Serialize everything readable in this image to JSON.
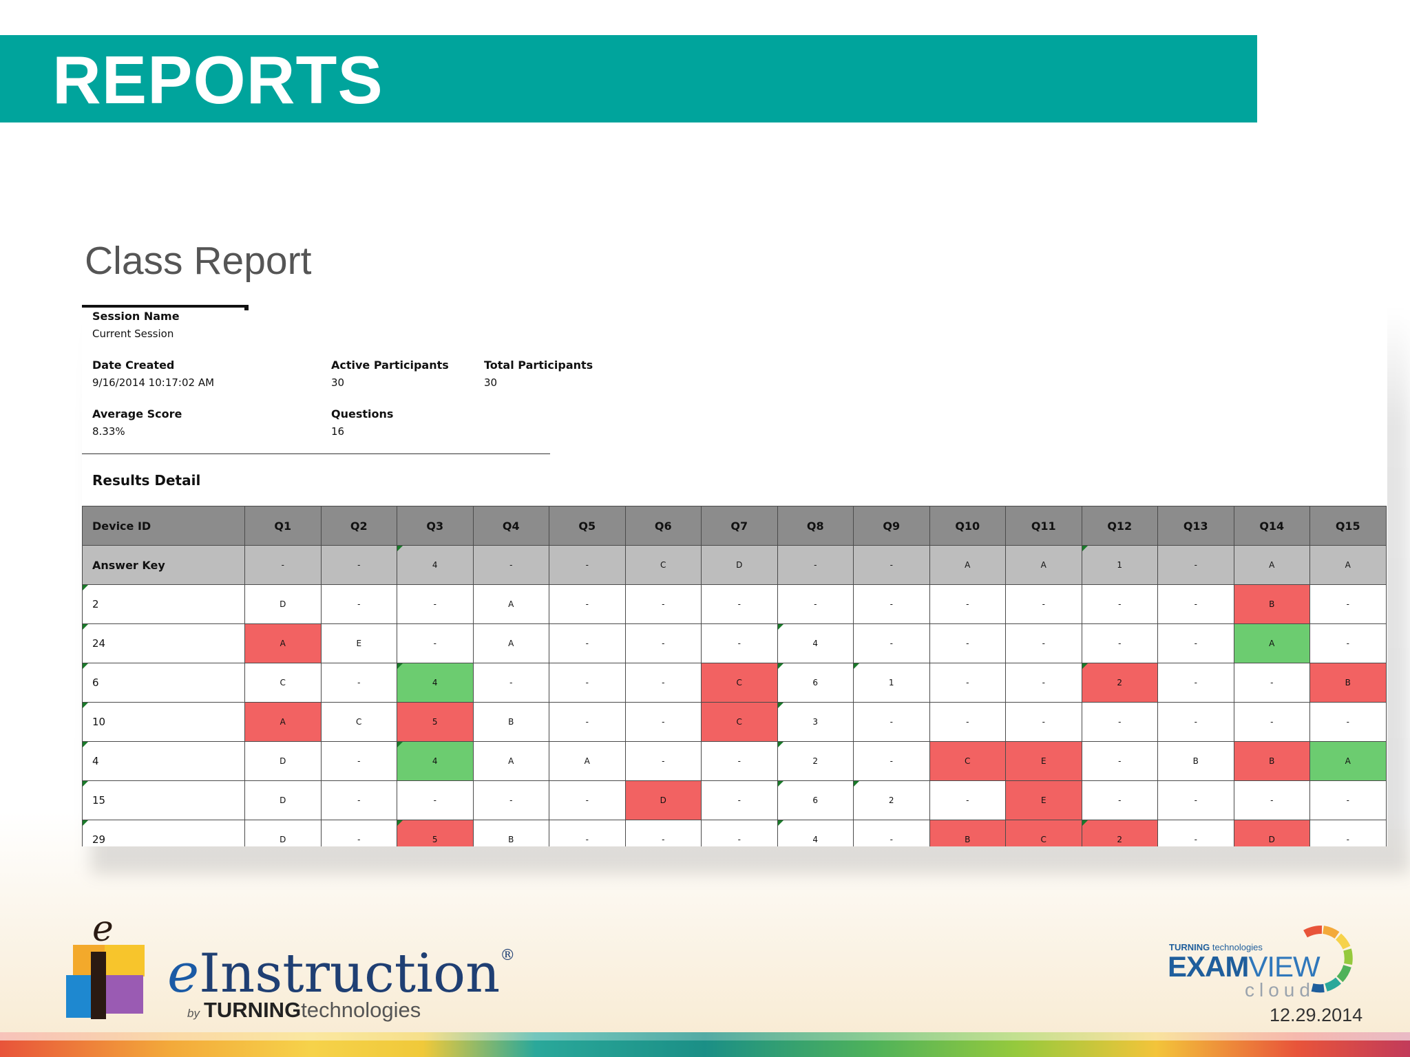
{
  "slide": {
    "banner_title": "REPORTS",
    "subtitle": "Class Report",
    "date": "12.29.2014"
  },
  "session": {
    "session_name_label": "Session Name",
    "session_name_value": "Current Session",
    "date_created_label": "Date Created",
    "date_created_value": "9/16/2014 10:17:02 AM",
    "active_participants_label": "Active Participants",
    "active_participants_value": "30",
    "total_participants_label": "Total Participants",
    "total_participants_value": "30",
    "average_score_label": "Average Score",
    "average_score_value": "8.33%",
    "questions_label": "Questions",
    "questions_value": "16"
  },
  "results": {
    "title": "Results Detail",
    "headers": [
      "Device ID",
      "Q1",
      "Q2",
      "Q3",
      "Q4",
      "Q5",
      "Q6",
      "Q7",
      "Q8",
      "Q9",
      "Q10",
      "Q11",
      "Q12",
      "Q13",
      "Q14",
      "Q15"
    ],
    "answer_key": [
      "Answer Key",
      "-",
      "-",
      "4",
      "-",
      "-",
      "C",
      "D",
      "-",
      "-",
      "A",
      "A",
      "1",
      "-",
      "A",
      "A"
    ],
    "rows": [
      [
        "2",
        "D",
        "-",
        "-",
        "A",
        "-",
        "-",
        "-",
        "-",
        "-",
        "-",
        "-",
        "-",
        "-",
        "B",
        "-"
      ],
      [
        "24",
        "A",
        "E",
        "-",
        "A",
        "-",
        "-",
        "-",
        "4",
        "-",
        "-",
        "-",
        "-",
        "-",
        "A",
        "-"
      ],
      [
        "6",
        "C",
        "-",
        "4",
        "-",
        "-",
        "-",
        "C",
        "6",
        "1",
        "-",
        "-",
        "2",
        "-",
        "-",
        "B"
      ],
      [
        "10",
        "A",
        "C",
        "5",
        "B",
        "-",
        "-",
        "C",
        "3",
        "-",
        "-",
        "-",
        "-",
        "-",
        "-",
        "-"
      ],
      [
        "4",
        "D",
        "-",
        "4",
        "A",
        "A",
        "-",
        "-",
        "2",
        "-",
        "C",
        "E",
        "-",
        "B",
        "B",
        "A"
      ],
      [
        "15",
        "D",
        "-",
        "-",
        "-",
        "-",
        "D",
        "-",
        "6",
        "2",
        "-",
        "E",
        "-",
        "-",
        "-",
        "-"
      ],
      [
        "29",
        "D",
        "-",
        "5",
        "B",
        "-",
        "-",
        "-",
        "4",
        "-",
        "B",
        "C",
        "2",
        "-",
        "D",
        "-"
      ]
    ],
    "colors": {
      "incorrect": "#f26262",
      "correct": "#6ccc70",
      "header": "#8c8c8c",
      "key": "#bdbdbd"
    }
  },
  "branding": {
    "einstruction_prefix": "e",
    "einstruction_word": "Instruction",
    "registered": "®",
    "by": "by",
    "turning": "TURNING",
    "technologies": "technologies",
    "examview_turning": "TURNING",
    "examview_technologies": "technologies",
    "examview_exam": "EXAM",
    "examview_view": "VIEW",
    "examview_cloud": "cloud"
  },
  "brand_colors": {
    "teal": "#00a49c",
    "navy": "#1f3f73"
  }
}
